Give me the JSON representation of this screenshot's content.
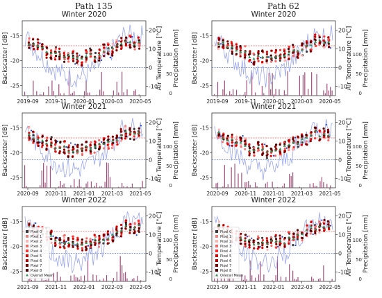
{
  "columns": [
    "Path 135",
    "Path 62"
  ],
  "axis_labels": {
    "left": "Backscatter [dB]",
    "right": "Air Temperature [°C]",
    "right_outer": "Precipitation [mm]"
  },
  "legend": {
    "entries": [
      "Pixel 0",
      "Pixel 1",
      "Pixel 2",
      "Pixel 3",
      "Pixel 4",
      "Pixel 5",
      "Pixel 6",
      "Pixel 7",
      "Pixel 8",
      "Overall Mean"
    ],
    "colors": [
      "#3a3a3a",
      "#f08080",
      "#ffb3b3",
      "#ff6666",
      "#ff3333",
      "#e00000",
      "#b00000",
      "#800000",
      "#4d0000",
      "#2e8b57"
    ]
  },
  "colors": {
    "temperature": "#9aa6ea",
    "precipitation": "#a0507a",
    "ref_red": "#e06060",
    "ref_blue": "#5577dd",
    "mean": "#2e8b57",
    "blue_point": "#1a44cc"
  },
  "chart_data": [
    {
      "type": "scatter",
      "title": "Winter 2020",
      "path": "Path 135",
      "x_ticks": [
        "2019-09",
        "2019-11",
        "2020-01",
        "2020-03",
        "2020-05"
      ],
      "y_left_ticks": [
        "-15",
        "-20",
        "-25"
      ],
      "y_left_range": [
        -27,
        -12
      ],
      "y_right_ticks": [
        "20",
        "10",
        "0",
        "-10"
      ],
      "y_right_range": [
        -15,
        25
      ],
      "y_outer_ticks": [
        "0",
        "50",
        "100"
      ],
      "reference_lines": {
        "backscatter_db": -17,
        "temperature_c": 0
      },
      "legend": false
    },
    {
      "type": "scatter",
      "title": "Winter 2020",
      "path": "Path 62",
      "x_ticks": [
        "2019-09",
        "2019-11",
        "2020-01",
        "2020-03",
        "2020-05"
      ],
      "y_left_ticks": [
        "-15",
        "-20",
        "-25"
      ],
      "y_left_range": [
        -27,
        -12
      ],
      "y_right_ticks": [
        "20",
        "10",
        "0",
        "-10"
      ],
      "y_right_range": [
        -15,
        25
      ],
      "y_outer_ticks": [
        "0",
        "50",
        "100"
      ],
      "reference_lines": {
        "backscatter_db": -17,
        "temperature_c": 0
      },
      "legend": false
    },
    {
      "type": "scatter",
      "title": "Winter 2021",
      "path": "Path 135",
      "x_ticks": [
        "2020-09",
        "2020-11",
        "2021-01",
        "2021-03",
        "2021-05"
      ],
      "y_left_ticks": [
        "-15",
        "-20",
        "-25"
      ],
      "y_left_range": [
        -27,
        -12
      ],
      "y_right_ticks": [
        "20",
        "10",
        "0",
        "-10"
      ],
      "y_right_range": [
        -15,
        25
      ],
      "y_outer_ticks": [
        "0",
        "50",
        "100"
      ],
      "reference_lines": {
        "backscatter_db": -17,
        "temperature_c": 0
      },
      "legend": false
    },
    {
      "type": "scatter",
      "title": "Winter 2021",
      "path": "Path 62",
      "x_ticks": [
        "2020-09",
        "2020-11",
        "2021-01",
        "2021-03",
        "2021-05"
      ],
      "y_left_ticks": [
        "-15",
        "-20",
        "-25"
      ],
      "y_left_range": [
        -27,
        -12
      ],
      "y_right_ticks": [
        "20",
        "10",
        "0",
        "-10"
      ],
      "y_right_range": [
        -15,
        25
      ],
      "y_outer_ticks": [
        "0",
        "50",
        "100"
      ],
      "reference_lines": {
        "backscatter_db": -17,
        "temperature_c": 0
      },
      "legend": false
    },
    {
      "type": "scatter",
      "title": "Winter 2022",
      "path": "Path 135",
      "x_ticks": [
        "2021-09",
        "2021-11",
        "2022-01",
        "2022-03",
        "2022-05"
      ],
      "y_left_ticks": [
        "-15",
        "-20",
        "-25"
      ],
      "y_left_range": [
        -27,
        -12
      ],
      "y_right_ticks": [
        "20",
        "10",
        "0",
        "-10"
      ],
      "y_right_range": [
        -15,
        25
      ],
      "y_outer_ticks": [
        "0",
        "50",
        "100"
      ],
      "reference_lines": {
        "backscatter_db": -17,
        "temperature_c": 0
      },
      "legend": true
    },
    {
      "type": "scatter",
      "title": "Winter 2022",
      "path": "Path 62",
      "x_ticks": [
        "2021-09",
        "2021-11",
        "2022-01",
        "2022-03",
        "2022-05"
      ],
      "y_left_ticks": [
        "-15",
        "-20",
        "-25"
      ],
      "y_left_range": [
        -27,
        -12
      ],
      "y_right_ticks": [
        "20",
        "10",
        "0",
        "-10"
      ],
      "y_right_range": [
        -15,
        25
      ],
      "y_outer_ticks": [
        "0",
        "50",
        "100"
      ],
      "reference_lines": {
        "backscatter_db": -17,
        "temperature_c": 0
      },
      "legend": true
    }
  ]
}
